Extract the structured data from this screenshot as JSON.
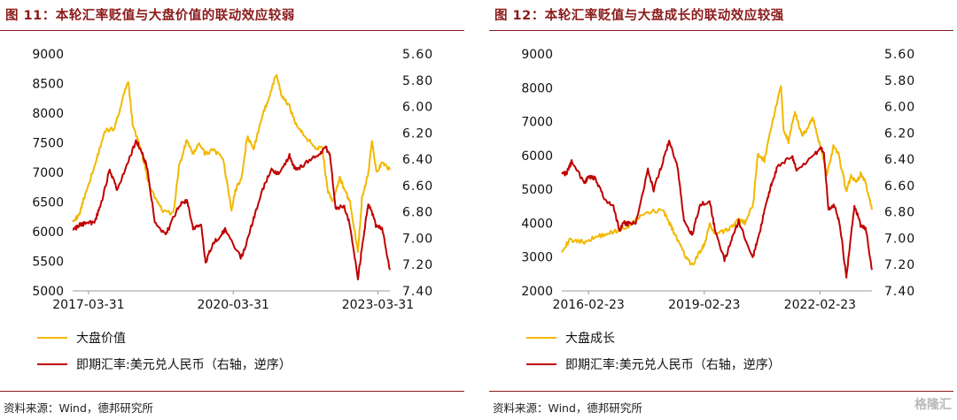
{
  "left": {
    "title": "图 11：本轮汇率贬值与大盘价值的联动效应较弱",
    "source": "资料来源：Wind，德邦研究所",
    "legend": [
      {
        "label": "大盘价值",
        "color": "#f2b800"
      },
      {
        "label": "即期汇率:美元兑人民币（右轴，逆序）",
        "color": "#c00000"
      }
    ],
    "chart_data": {
      "type": "line",
      "x_ticks": [
        "2017-03-31",
        "2020-03-31",
        "2023-03-31"
      ],
      "y_left": {
        "ticks": [
          "9000",
          "8500",
          "8000",
          "7500",
          "7000",
          "6500",
          "6000",
          "5500",
          "5000"
        ],
        "range": [
          5000,
          9000
        ]
      },
      "y_right": {
        "ticks": [
          "5.60",
          "5.80",
          "6.00",
          "6.20",
          "6.40",
          "6.60",
          "6.80",
          "7.00",
          "7.20",
          "7.40"
        ],
        "range": [
          5.6,
          7.4
        ],
        "inverted": true
      },
      "x_range": [
        "2016-12-01",
        "2023-06-30"
      ],
      "series": [
        {
          "name": "大盘价值",
          "axis": "left",
          "color": "#f2b800",
          "points": [
            [
              "2016-12-01",
              6200
            ],
            [
              "2017-01-15",
              6250
            ],
            [
              "2017-03-01",
              6600
            ],
            [
              "2017-05-15",
              7100
            ],
            [
              "2017-08-01",
              7700
            ],
            [
              "2017-10-15",
              7750
            ],
            [
              "2017-12-15",
              8250
            ],
            [
              "2018-01-26",
              8550
            ],
            [
              "2018-03-01",
              7800
            ],
            [
              "2018-05-01",
              7400
            ],
            [
              "2018-07-01",
              6800
            ],
            [
              "2018-09-01",
              6500
            ],
            [
              "2018-10-15",
              6350
            ],
            [
              "2019-01-02",
              6300
            ],
            [
              "2019-02-15",
              7100
            ],
            [
              "2019-04-15",
              7550
            ],
            [
              "2019-06-01",
              7300
            ],
            [
              "2019-07-15",
              7500
            ],
            [
              "2019-09-01",
              7300
            ],
            [
              "2019-11-01",
              7400
            ],
            [
              "2020-01-15",
              7200
            ],
            [
              "2020-03-19",
              6350
            ],
            [
              "2020-04-15",
              6700
            ],
            [
              "2020-06-01",
              6900
            ],
            [
              "2020-07-15",
              7600
            ],
            [
              "2020-09-01",
              7400
            ],
            [
              "2020-11-01",
              7900
            ],
            [
              "2020-12-15",
              8200
            ],
            [
              "2021-02-18",
              8650
            ],
            [
              "2021-04-01",
              8300
            ],
            [
              "2021-06-01",
              8100
            ],
            [
              "2021-08-01",
              7750
            ],
            [
              "2021-10-01",
              7600
            ],
            [
              "2021-12-15",
              7400
            ],
            [
              "2022-02-01",
              7450
            ],
            [
              "2022-03-15",
              6700
            ],
            [
              "2022-04-27",
              6500
            ],
            [
              "2022-06-15",
              6900
            ],
            [
              "2022-07-15",
              6750
            ],
            [
              "2022-09-01",
              6500
            ],
            [
              "2022-10-31",
              5650
            ],
            [
              "2022-11-30",
              6550
            ],
            [
              "2023-01-15",
              6950
            ],
            [
              "2023-02-15",
              7550
            ],
            [
              "2023-03-20",
              7000
            ],
            [
              "2023-05-01",
              7150
            ],
            [
              "2023-06-30",
              7050
            ]
          ]
        },
        {
          "name": "即期汇率:美元兑人民币（右轴，逆序）",
          "axis": "right",
          "color": "#c00000",
          "points": [
            [
              "2016-12-01",
              6.95
            ],
            [
              "2017-01-15",
              6.9
            ],
            [
              "2017-03-01",
              6.89
            ],
            [
              "2017-05-15",
              6.88
            ],
            [
              "2017-07-01",
              6.75
            ],
            [
              "2017-09-08",
              6.48
            ],
            [
              "2017-11-01",
              6.63
            ],
            [
              "2018-01-15",
              6.45
            ],
            [
              "2018-03-26",
              6.26
            ],
            [
              "2018-05-01",
              6.33
            ],
            [
              "2018-06-15",
              6.45
            ],
            [
              "2018-08-15",
              6.87
            ],
            [
              "2018-10-31",
              6.97
            ],
            [
              "2018-12-01",
              6.92
            ],
            [
              "2019-02-15",
              6.75
            ],
            [
              "2019-04-15",
              6.71
            ],
            [
              "2019-06-01",
              6.92
            ],
            [
              "2019-08-01",
              6.9
            ],
            [
              "2019-09-03",
              7.18
            ],
            [
              "2019-11-01",
              7.04
            ],
            [
              "2019-12-31",
              6.97
            ],
            [
              "2020-02-01",
              6.93
            ],
            [
              "2020-05-27",
              7.15
            ],
            [
              "2020-07-01",
              7.07
            ],
            [
              "2020-09-01",
              6.85
            ],
            [
              "2020-11-01",
              6.65
            ],
            [
              "2021-01-15",
              6.47
            ],
            [
              "2021-03-15",
              6.52
            ],
            [
              "2021-05-31",
              6.37
            ],
            [
              "2021-07-15",
              6.48
            ],
            [
              "2021-09-15",
              6.44
            ],
            [
              "2021-12-31",
              6.37
            ],
            [
              "2022-02-28",
              6.31
            ],
            [
              "2022-04-01",
              6.36
            ],
            [
              "2022-05-15",
              6.78
            ],
            [
              "2022-07-15",
              6.75
            ],
            [
              "2022-09-01",
              6.9
            ],
            [
              "2022-10-31",
              7.3
            ],
            [
              "2022-11-30",
              7.08
            ],
            [
              "2023-01-15",
              6.75
            ],
            [
              "2023-02-01",
              6.76
            ],
            [
              "2023-03-15",
              6.9
            ],
            [
              "2023-05-01",
              6.92
            ],
            [
              "2023-06-30",
              7.24
            ]
          ]
        }
      ]
    }
  },
  "right": {
    "title": "图 12：本轮汇率贬值与大盘成长的联动效应较强",
    "source": "资料来源：Wind，德邦研究所",
    "legend": [
      {
        "label": "大盘成长",
        "color": "#f2b800"
      },
      {
        "label": "即期汇率:美元兑人民币（右轴，逆序）",
        "color": "#c00000"
      }
    ],
    "chart_data": {
      "type": "line",
      "x_ticks": [
        "2016-02-23",
        "2019-02-23",
        "2022-02-23"
      ],
      "y_left": {
        "ticks": [
          "9000",
          "8000",
          "7000",
          "6000",
          "5000",
          "4000",
          "3000",
          "2000"
        ],
        "range": [
          2000,
          9000
        ]
      },
      "y_right": {
        "ticks": [
          "5.60",
          "5.80",
          "6.00",
          "6.20",
          "6.40",
          "6.60",
          "6.80",
          "7.00",
          "7.20",
          "7.40"
        ],
        "range": [
          5.6,
          7.4
        ],
        "inverted": true
      },
      "x_range": [
        "2015-06-15",
        "2023-06-30"
      ],
      "series": [
        {
          "name": "大盘成长",
          "axis": "right",
          "color": "#f2b800",
          "axis_override": "left",
          "points": [
            [
              "2015-06-15",
              3200
            ],
            [
              "2015-09-01",
              3500
            ],
            [
              "2016-01-15",
              3450
            ],
            [
              "2016-05-01",
              3600
            ],
            [
              "2016-09-01",
              3700
            ],
            [
              "2016-12-01",
              3800
            ],
            [
              "2017-04-01",
              3950
            ],
            [
              "2017-08-01",
              4300
            ],
            [
              "2018-01-26",
              4400
            ],
            [
              "2018-03-15",
              4100
            ],
            [
              "2018-05-01",
              3800
            ],
            [
              "2018-07-01",
              3400
            ],
            [
              "2018-09-01",
              3000
            ],
            [
              "2018-10-31",
              2750
            ],
            [
              "2019-01-02",
              3100
            ],
            [
              "2019-02-23",
              3350
            ],
            [
              "2019-04-15",
              3950
            ],
            [
              "2019-06-01",
              3700
            ],
            [
              "2019-09-01",
              3750
            ],
            [
              "2019-12-01",
              3950
            ],
            [
              "2020-01-15",
              4100
            ],
            [
              "2020-03-19",
              4000
            ],
            [
              "2020-06-01",
              4600
            ],
            [
              "2020-07-15",
              6050
            ],
            [
              "2020-09-15",
              5850
            ],
            [
              "2020-11-15",
              6800
            ],
            [
              "2021-02-18",
              8050
            ],
            [
              "2021-03-15",
              6800
            ],
            [
              "2021-05-01",
              6400
            ],
            [
              "2021-07-01",
              7300
            ],
            [
              "2021-09-01",
              6600
            ],
            [
              "2021-11-01",
              6800
            ],
            [
              "2021-12-15",
              7150
            ],
            [
              "2022-01-20",
              6700
            ],
            [
              "2022-03-15",
              6100
            ],
            [
              "2022-04-27",
              5400
            ],
            [
              "2022-06-30",
              6250
            ],
            [
              "2022-08-15",
              6050
            ],
            [
              "2022-10-31",
              4950
            ],
            [
              "2022-12-15",
              5400
            ],
            [
              "2023-02-01",
              5200
            ],
            [
              "2023-03-15",
              5450
            ],
            [
              "2023-05-01",
              5200
            ],
            [
              "2023-06-30",
              4400
            ]
          ]
        },
        {
          "name": "即期汇率:美元兑人民币（右轴，逆序）",
          "axis": "right",
          "color": "#c00000",
          "points": [
            [
              "2015-06-15",
              6.52
            ],
            [
              "2015-08-01",
              6.5
            ],
            [
              "2015-09-15",
              6.42
            ],
            [
              "2016-01-15",
              6.58
            ],
            [
              "2016-03-01",
              6.53
            ],
            [
              "2016-05-01",
              6.55
            ],
            [
              "2016-07-15",
              6.69
            ],
            [
              "2016-10-15",
              6.76
            ],
            [
              "2016-12-15",
              6.95
            ],
            [
              "2017-01-15",
              6.88
            ],
            [
              "2017-03-01",
              6.89
            ],
            [
              "2017-05-15",
              6.88
            ],
            [
              "2017-09-08",
              6.48
            ],
            [
              "2017-11-01",
              6.63
            ],
            [
              "2018-01-15",
              6.45
            ],
            [
              "2018-03-26",
              6.26
            ],
            [
              "2018-06-15",
              6.45
            ],
            [
              "2018-08-15",
              6.87
            ],
            [
              "2018-10-31",
              6.97
            ],
            [
              "2019-01-15",
              6.75
            ],
            [
              "2019-04-15",
              6.71
            ],
            [
              "2019-06-01",
              6.92
            ],
            [
              "2019-09-03",
              7.17
            ],
            [
              "2019-11-01",
              7.03
            ],
            [
              "2020-01-15",
              6.87
            ],
            [
              "2020-05-27",
              7.15
            ],
            [
              "2020-07-15",
              7.0
            ],
            [
              "2020-09-15",
              6.8
            ],
            [
              "2020-11-15",
              6.6
            ],
            [
              "2021-01-15",
              6.46
            ],
            [
              "2021-05-31",
              6.37
            ],
            [
              "2021-07-15",
              6.48
            ],
            [
              "2021-12-31",
              6.37
            ],
            [
              "2022-02-28",
              6.31
            ],
            [
              "2022-04-01",
              6.36
            ],
            [
              "2022-05-15",
              6.78
            ],
            [
              "2022-07-15",
              6.75
            ],
            [
              "2022-09-01",
              6.9
            ],
            [
              "2022-10-31",
              7.3
            ],
            [
              "2022-11-30",
              7.08
            ],
            [
              "2023-01-15",
              6.75
            ],
            [
              "2023-03-15",
              6.9
            ],
            [
              "2023-05-01",
              6.92
            ],
            [
              "2023-06-30",
              7.24
            ]
          ]
        }
      ]
    }
  },
  "watermark": "格隆汇"
}
